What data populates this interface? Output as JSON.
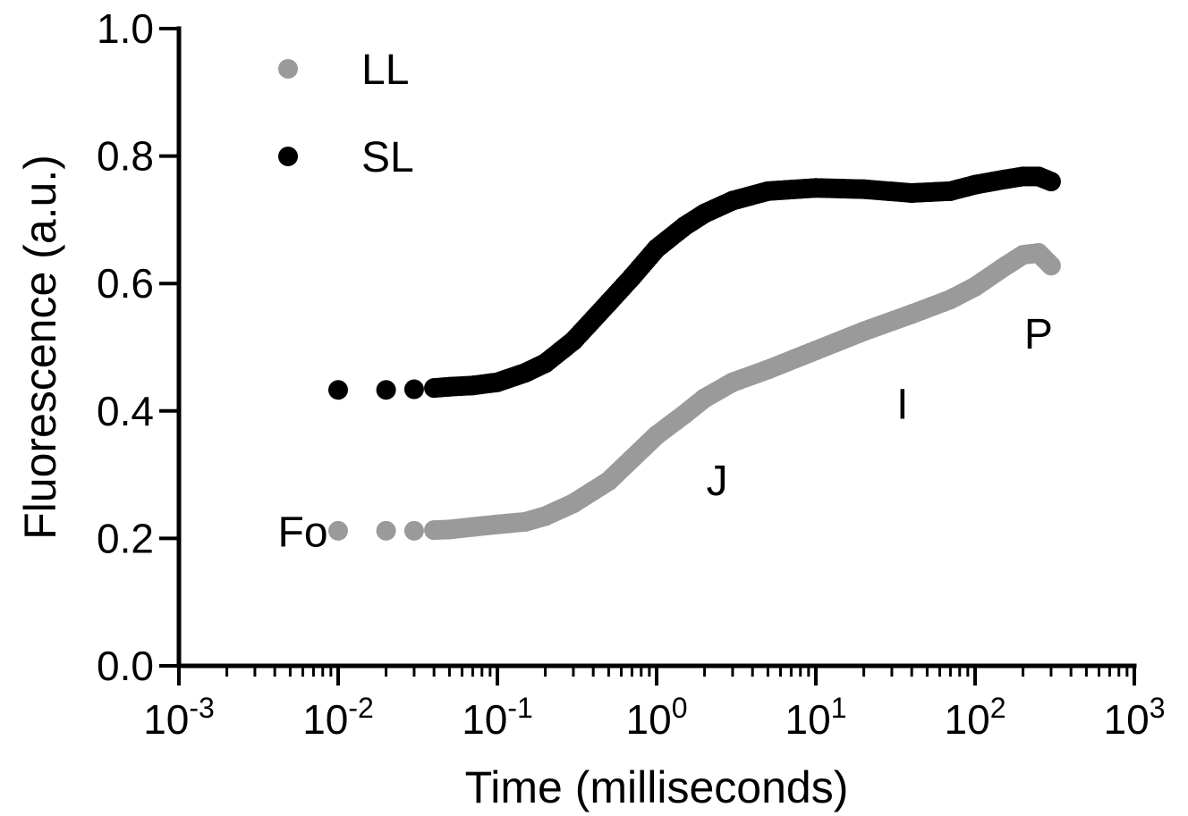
{
  "chart_data": {
    "type": "scatter",
    "xlabel": "Time (milliseconds)",
    "ylabel": "Fluorescence (a.u.)",
    "xscale": "log",
    "xlim": [
      0.001,
      1000
    ],
    "ylim": [
      0,
      1.0
    ],
    "x_ticks": [
      {
        "base": "10",
        "exp": "-3",
        "value": 0.001
      },
      {
        "base": "10",
        "exp": "-2",
        "value": 0.01
      },
      {
        "base": "10",
        "exp": "-1",
        "value": 0.1
      },
      {
        "base": "10",
        "exp": "0",
        "value": 1
      },
      {
        "base": "10",
        "exp": "1",
        "value": 10
      },
      {
        "base": "10",
        "exp": "2",
        "value": 100
      },
      {
        "base": "10",
        "exp": "3",
        "value": 1000
      }
    ],
    "y_ticks": [
      "0.0",
      "0.2",
      "0.4",
      "0.6",
      "0.8",
      "1.0"
    ],
    "legend_position": "top-left",
    "series": [
      {
        "name": "LL",
        "color": "#9a9a9a",
        "points": [
          [
            0.01,
            0.212
          ],
          [
            0.02,
            0.212
          ],
          [
            0.03,
            0.212
          ],
          [
            0.04,
            0.213
          ],
          [
            0.05,
            0.214
          ],
          [
            0.07,
            0.218
          ],
          [
            0.1,
            0.222
          ],
          [
            0.15,
            0.226
          ],
          [
            0.2,
            0.235
          ],
          [
            0.3,
            0.255
          ],
          [
            0.5,
            0.29
          ],
          [
            0.7,
            0.325
          ],
          [
            1.0,
            0.362
          ],
          [
            1.5,
            0.395
          ],
          [
            2.0,
            0.42
          ],
          [
            3.0,
            0.445
          ],
          [
            5.0,
            0.465
          ],
          [
            10,
            0.495
          ],
          [
            20,
            0.525
          ],
          [
            40,
            0.552
          ],
          [
            70,
            0.575
          ],
          [
            100,
            0.595
          ],
          [
            150,
            0.625
          ],
          [
            200,
            0.645
          ],
          [
            250,
            0.648
          ],
          [
            300,
            0.628
          ]
        ]
      },
      {
        "name": "SL",
        "color": "#000000",
        "points": [
          [
            0.01,
            0.433
          ],
          [
            0.02,
            0.433
          ],
          [
            0.03,
            0.434
          ],
          [
            0.04,
            0.436
          ],
          [
            0.05,
            0.438
          ],
          [
            0.07,
            0.44
          ],
          [
            0.1,
            0.445
          ],
          [
            0.15,
            0.46
          ],
          [
            0.2,
            0.475
          ],
          [
            0.3,
            0.51
          ],
          [
            0.5,
            0.57
          ],
          [
            0.7,
            0.61
          ],
          [
            1.0,
            0.655
          ],
          [
            1.5,
            0.69
          ],
          [
            2.0,
            0.71
          ],
          [
            3.0,
            0.73
          ],
          [
            5.0,
            0.745
          ],
          [
            10,
            0.75
          ],
          [
            20,
            0.748
          ],
          [
            40,
            0.742
          ],
          [
            70,
            0.745
          ],
          [
            100,
            0.755
          ],
          [
            150,
            0.763
          ],
          [
            200,
            0.768
          ],
          [
            250,
            0.768
          ],
          [
            300,
            0.76
          ]
        ]
      }
    ],
    "annotations": [
      {
        "text": "Fo",
        "x": 0.006,
        "y": 0.21
      },
      {
        "text": "J",
        "x": 2.4,
        "y": 0.29
      },
      {
        "text": "I",
        "x": 35,
        "y": 0.41
      },
      {
        "text": "P",
        "x": 250,
        "y": 0.52
      }
    ]
  }
}
